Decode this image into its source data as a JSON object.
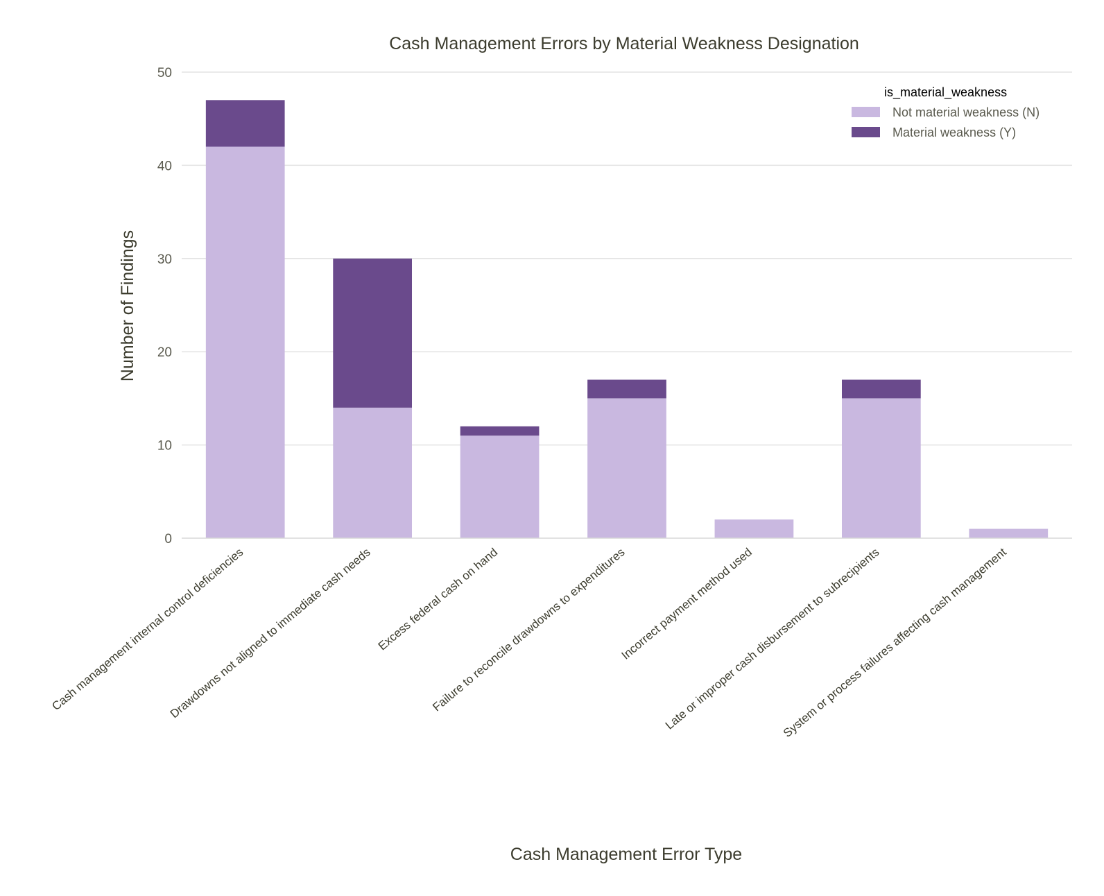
{
  "chart_data": {
    "type": "bar",
    "stacked": true,
    "title": "Cash Management Errors by Material Weakness Designation",
    "xlabel": "Cash Management Error Type",
    "ylabel": "Number of Findings",
    "ylim": [
      0,
      50
    ],
    "yticks": [
      0,
      10,
      20,
      30,
      40,
      50
    ],
    "grid": true,
    "legend_position": "top-right",
    "legend_title": "is_material_weakness",
    "categories": [
      "Cash management internal control deficiencies",
      "Drawdowns not aligned to immediate cash needs",
      "Excess federal cash on hand",
      "Failure to reconcile drawdowns to expenditures",
      "Incorrect payment method used",
      "Late or improper cash disbursement to subrecipients",
      "System or process failures affecting cash management"
    ],
    "series": [
      {
        "name": "Not material weakness (N)",
        "color": "#c9b8e0",
        "values": [
          42,
          14,
          11,
          15,
          2,
          15,
          1
        ]
      },
      {
        "name": "Material weakness (Y)",
        "color": "#6a4a8c",
        "values": [
          5,
          16,
          1,
          2,
          0,
          2,
          0
        ]
      }
    ]
  }
}
